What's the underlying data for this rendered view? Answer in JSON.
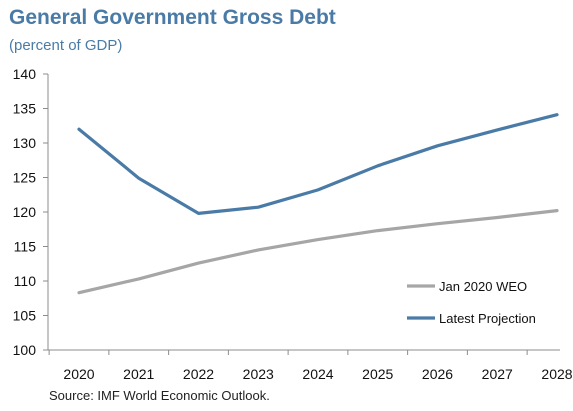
{
  "chart_data": {
    "type": "line",
    "title": "General Government Gross Debt",
    "subtitle": "(percent of GDP)",
    "xlabel": "",
    "ylabel": "",
    "x": [
      "2020",
      "2021",
      "2022",
      "2023",
      "2024",
      "2025",
      "2026",
      "2027",
      "2028"
    ],
    "ylim": [
      100,
      140
    ],
    "yticks": [
      100,
      105,
      110,
      115,
      120,
      125,
      130,
      135,
      140
    ],
    "grid": false,
    "legend_position": "bottom-right",
    "series": [
      {
        "name": "Jan 2020 WEO",
        "color": "#a6a6a6",
        "values": [
          108.3,
          110.3,
          112.6,
          114.5,
          116.0,
          117.3,
          118.3,
          119.2,
          120.2
        ]
      },
      {
        "name": "Latest Projection",
        "color": "#4a7ba7",
        "values": [
          132.0,
          124.9,
          119.8,
          120.7,
          123.2,
          126.7,
          129.6,
          131.9,
          134.1
        ]
      }
    ],
    "source": "Source: IMF World Economic Outlook."
  }
}
